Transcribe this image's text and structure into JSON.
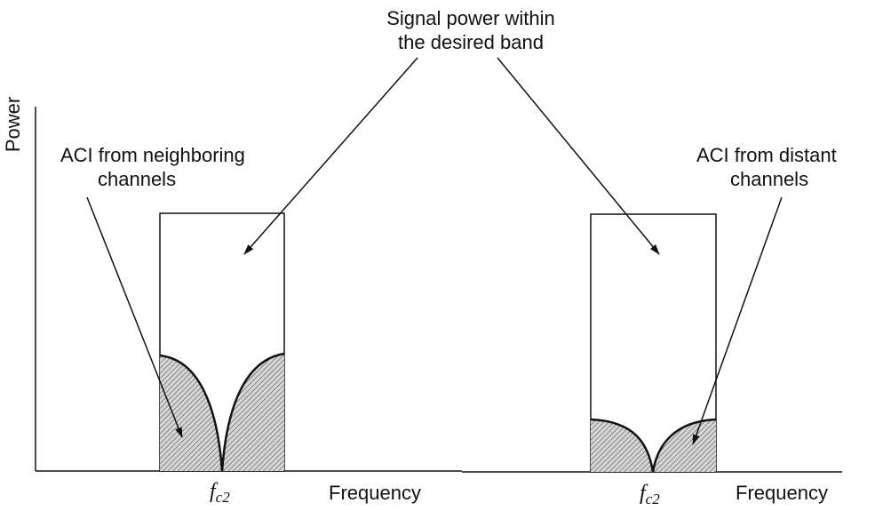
{
  "title": {
    "lines": [
      "Signal power within",
      "the desired band"
    ]
  },
  "left_panel": {
    "y_axis_label": "Power",
    "annotation": {
      "lines": [
        "ACI from neighboring",
        "channels"
      ]
    },
    "center_label": {
      "symbol": "f",
      "subscript": "c2"
    },
    "x_axis_label": "Frequency"
  },
  "right_panel": {
    "annotation": {
      "lines": [
        "ACI from distant",
        "channels"
      ]
    },
    "center_label": {
      "symbol": "f",
      "subscript": "c2"
    },
    "x_axis_label": "Frequency"
  }
}
